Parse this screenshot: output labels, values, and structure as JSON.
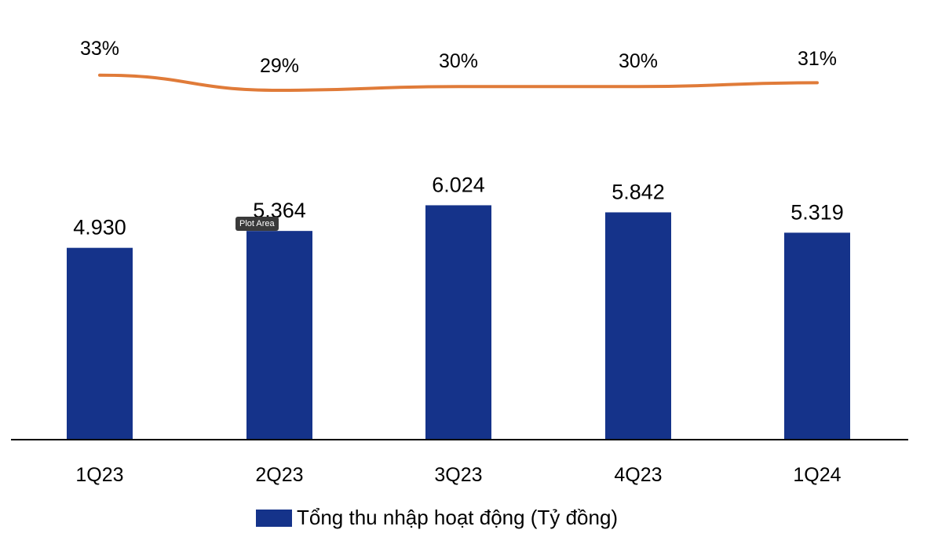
{
  "chart_data": {
    "type": "bar",
    "categories": [
      "1Q23",
      "2Q23",
      "3Q23",
      "4Q23",
      "1Q24"
    ],
    "series": [
      {
        "name": "Tổng thu nhập hoạt động (Tỷ đồng)",
        "type": "bar",
        "values": [
          4930,
          5364,
          6024,
          5842,
          5319
        ],
        "labels": [
          "4.930",
          "5.364",
          "6.024",
          "5.842",
          "5.319"
        ],
        "color": "#15338a"
      },
      {
        "type": "line",
        "values": [
          33,
          29,
          30,
          30,
          31
        ],
        "labels": [
          "33%",
          "29%",
          "30%",
          "30%",
          "31%"
        ],
        "color": "#e07b39"
      }
    ],
    "ylim": [
      0,
      8000
    ],
    "grid": false,
    "legend_position": "bottom"
  },
  "tooltip": {
    "text": "Plot Area"
  }
}
